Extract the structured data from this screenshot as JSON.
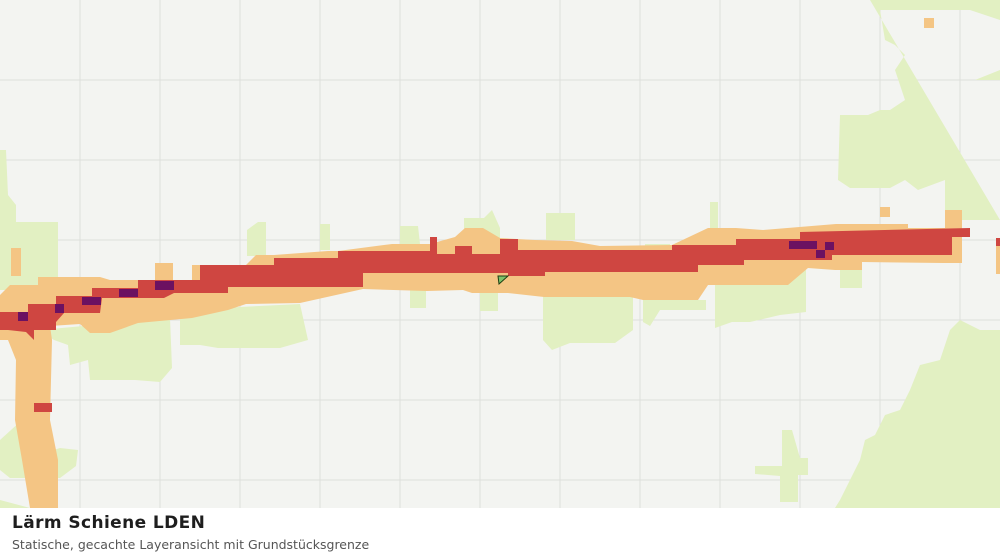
{
  "panel": {
    "title": "Lärm Schiene LDEN",
    "subtitle": "Statische, gecachte Layeransicht mit Grundstücksgrenze"
  }
}
